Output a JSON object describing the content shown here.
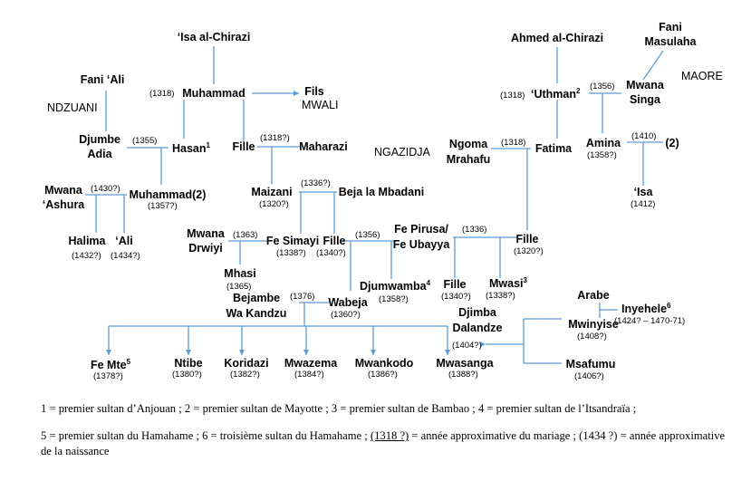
{
  "names": {
    "isa_chirazi": "‘Isa al-Chirazi",
    "fani_ali": "Fani ‘Ali",
    "muhammad": "Muhammad",
    "fils": "Fils",
    "djumbe_1": "Djumbe",
    "djumbe_2": "Adia",
    "hasan": "Hasan",
    "fille_a": "Fille",
    "maharazi": "Maharazi",
    "mwana_ashura_1": "Mwana",
    "mwana_ashura_2": "‘Ashura",
    "muhammad2": "Muhammad(2)",
    "maizani": "Maizani",
    "beja": "Beja la Mbadani",
    "halima": "Halima",
    "ali": "‘Ali",
    "mwana_drwiyi_1": "Mwana",
    "mwana_drwiyi_2": "Drwiyi",
    "fe_simayi": "Fe Simayi",
    "fille_b": "Fille",
    "mhasi": "Mhasi",
    "djumwamba": "Djumwamba",
    "fe_pirusa_1": "Fe Pirusa/",
    "fe_pirusa_2": "Fe Ubayya",
    "fille_c": "Fille",
    "fille_d": "Fille",
    "mwasi": "Mwasi",
    "bejambe_1": "Bejambe",
    "bejambe_2": "Wa Kandzu",
    "wabeja": "Wabeja",
    "fe_mte": "Fe Mte",
    "ntibe": "Ntibe",
    "koridazi": "Koridazi",
    "mwazema": "Mwazema",
    "mwankodo": "Mwankodo",
    "mwasanga": "Mwasanga",
    "djimba_1": "Djimba",
    "djimba_2": "Dalandze",
    "arabe": "Arabe",
    "inyehele": "Inyehele",
    "mwinyise": "Mwinyise",
    "msafumu": "Msafumu",
    "ahmed_chirazi": "Ahmed al-Chirazi",
    "fani_masulaha_1": "Fani",
    "fani_masulaha_2": "Masulaha",
    "mwana_singa_1": "Mwana",
    "mwana_singa_2": "Singa",
    "uthman": "‘Uthman",
    "ngoma_1": "Ngoma",
    "ngoma_2": "Mrahafu",
    "fatima": "Fatima",
    "amina": "Amina",
    "two": "(2)",
    "isa": "‘Isa"
  },
  "sups": {
    "hasan": "1",
    "uthman": "2",
    "mwasi": "3",
    "djumwamba": "4",
    "fe_mte": "5",
    "inyehele": "6"
  },
  "regions": {
    "ndzuani": "NDZUANI",
    "mwali": "MWALI",
    "ngazidja": "NGAZIDJA",
    "maore": "MAORE"
  },
  "years": {
    "muhammad": "(1318)",
    "hasan_djumbe": "(1355)",
    "fille_maharazi": "(1318?)",
    "mwana_ashura": "(1430?)",
    "muhammad2": "(1357?)",
    "maizani_beja": "(1336?)",
    "maizani": "(1320?)",
    "halima": "(1432?)",
    "ali": "(1434?)",
    "drwiyi_simayi": "(1363)",
    "fe_simayi": "(1338?)",
    "fille_b": "(1340?)",
    "fille_b_djumwamba": "(1356)",
    "mhasi": "(1365)",
    "djumwamba": "(1358?)",
    "pirusa_fille": "(1336)",
    "fille_c": "(1320?)",
    "fille_d": "(1340?)",
    "mwasi": "(1338?)",
    "bejambe_wabeja": "(1376)",
    "wabeja": "(1360?)",
    "fe_mte": "(1378?)",
    "ntibe": "(1380?)",
    "koridazi": "(1382?)",
    "mwazema": "(1384?)",
    "mwankodo": "(1386?)",
    "mwasanga": "(1388?)",
    "djimba_mwinyise": "(1404?)",
    "inyehele": "(1424? – 1470-71)",
    "mwinyise": "(1408?)",
    "msafumu": "(1406?)",
    "uthman": "(1318)",
    "uthman_singa": "(1356)",
    "ngoma_fatima": "(1318)",
    "amina_2": "(1410)",
    "amina": "(1358?)",
    "isa": "(1412)"
  },
  "legend": {
    "line1": "1 = premier sultan d’Anjouan ; 2 = premier sultan de Mayotte ; 3 = premier sultan de Bambao ; 4 = premier sultan de l’Itsandraïa ;",
    "line2_a": "5 = premier sultan du Hamahame ; 6 = troisième sultan du Hamahame ; ",
    "line2_u": "(1318 ?)",
    "line2_b": " = année approximative du mariage ; (1434 ?) = année approximative de la naissance"
  }
}
